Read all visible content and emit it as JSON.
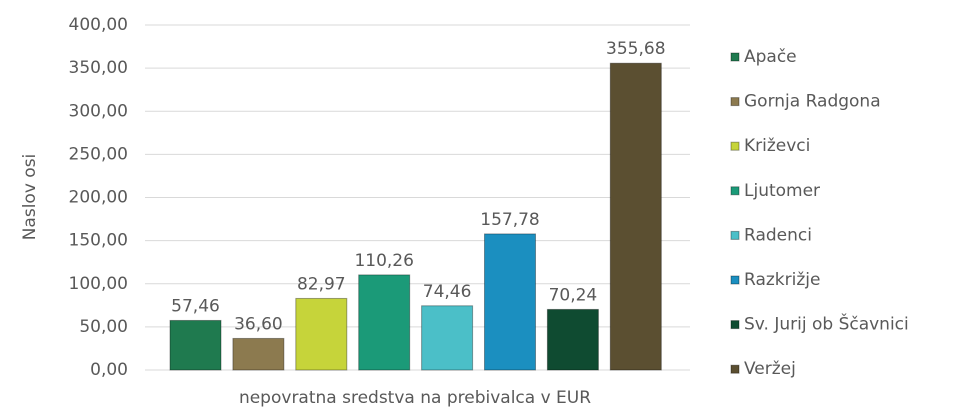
{
  "chart_data": {
    "type": "bar",
    "categories": [
      "nepovratna sredstva na prebivalca v EUR"
    ],
    "ylabel": "Naslov osi",
    "ylim": [
      0,
      400
    ],
    "yticks": [
      {
        "value": 0,
        "label": "0,00"
      },
      {
        "value": 50,
        "label": "50,00"
      },
      {
        "value": 100,
        "label": "100,00"
      },
      {
        "value": 150,
        "label": "150,00"
      },
      {
        "value": 200,
        "label": "200,00"
      },
      {
        "value": 250,
        "label": "250,00"
      },
      {
        "value": 300,
        "label": "300,00"
      },
      {
        "value": 350,
        "label": "350,00"
      },
      {
        "value": 400,
        "label": "400,00"
      }
    ],
    "grid": true,
    "legend": "right",
    "series": [
      {
        "name": "Apače",
        "color": "#1f7a4f",
        "values": [
          57.46
        ],
        "value_labels": [
          "57,46"
        ]
      },
      {
        "name": "Gornja Radgona",
        "color": "#8c7a4f",
        "values": [
          36.6
        ],
        "value_labels": [
          "36,60"
        ]
      },
      {
        "name": "Križevci",
        "color": "#c6d43a",
        "values": [
          82.97
        ],
        "value_labels": [
          "82,97"
        ]
      },
      {
        "name": "Ljutomer",
        "color": "#1b9a78",
        "values": [
          110.26
        ],
        "value_labels": [
          "110,26"
        ]
      },
      {
        "name": "Radenci",
        "color": "#4bbfc8",
        "values": [
          74.46
        ],
        "value_labels": [
          "74,46"
        ]
      },
      {
        "name": "Razkrižje",
        "color": "#1b8fc0",
        "values": [
          157.78
        ],
        "value_labels": [
          "157,78"
        ]
      },
      {
        "name": "Sv. Jurij ob Ščavnici",
        "color": "#0f4b31",
        "values": [
          70.24
        ],
        "value_labels": [
          "70,24"
        ]
      },
      {
        "name": "Veržej",
        "color": "#5b4f31",
        "values": [
          355.68
        ],
        "value_labels": [
          "355,68"
        ]
      }
    ]
  }
}
